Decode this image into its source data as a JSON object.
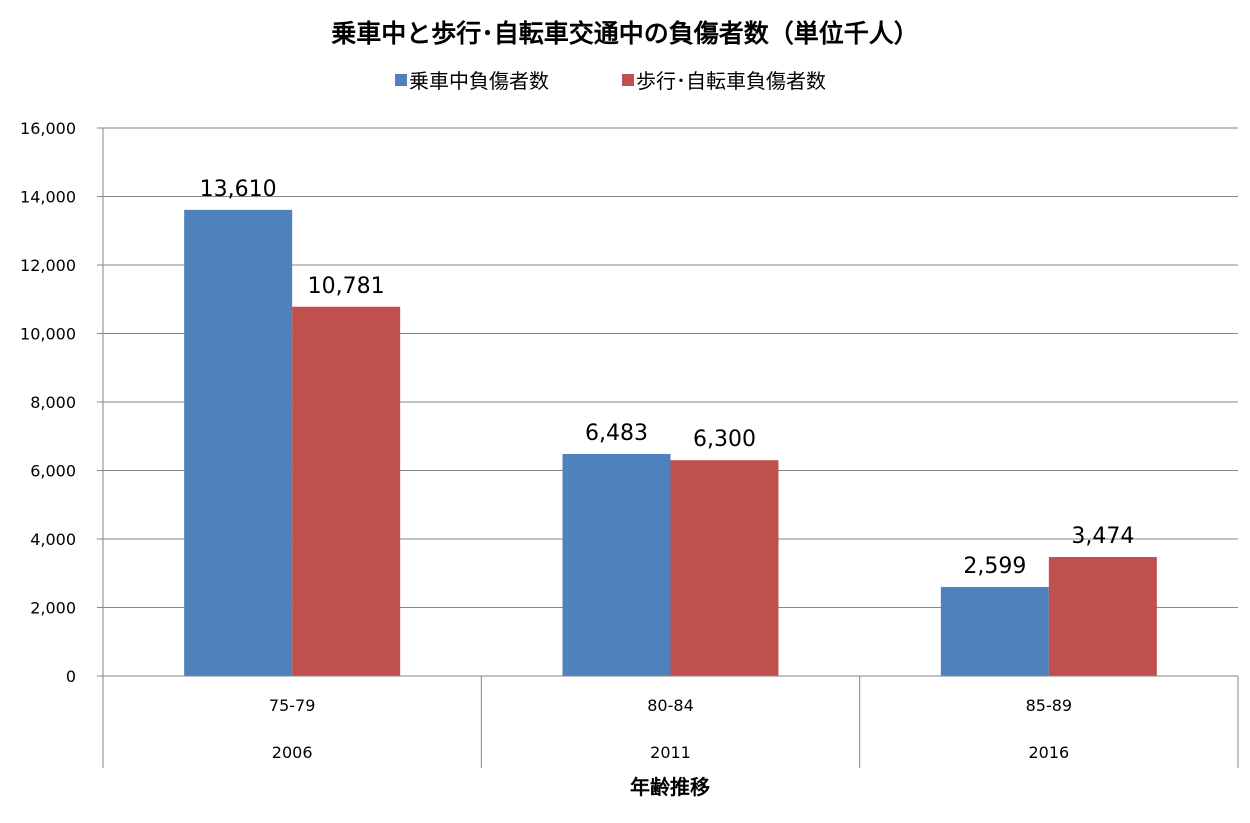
{
  "chart_data": {
    "type": "bar",
    "title": "乗車中と歩行･自転車交通中の負傷者数（単位千人）",
    "xlabel": "年齢推移",
    "ylabel": "",
    "ylim": [
      0,
      16000
    ],
    "yticks": [
      0,
      2000,
      4000,
      6000,
      8000,
      10000,
      12000,
      14000,
      16000
    ],
    "ytick_labels": [
      "0",
      "2,000",
      "4,000",
      "6,000",
      "8,000",
      "10,000",
      "12,000",
      "14,000",
      "16,000"
    ],
    "grid": true,
    "legend_position": "top-center",
    "categories": [
      "75-79",
      "80-84",
      "85-89"
    ],
    "category_groups": [
      "2006",
      "2011",
      "2016"
    ],
    "series": [
      {
        "name": "乗車中負傷者数",
        "color": "#4F81BD",
        "values": [
          13610,
          6483,
          2599
        ],
        "labels": [
          "13,610",
          "6,483",
          "2,599"
        ]
      },
      {
        "name": "歩行･自転車負傷者数",
        "color": "#C0504D",
        "values": [
          10781,
          6300,
          3474
        ],
        "labels": [
          "10,781",
          "6,300",
          "3,474"
        ]
      }
    ]
  }
}
